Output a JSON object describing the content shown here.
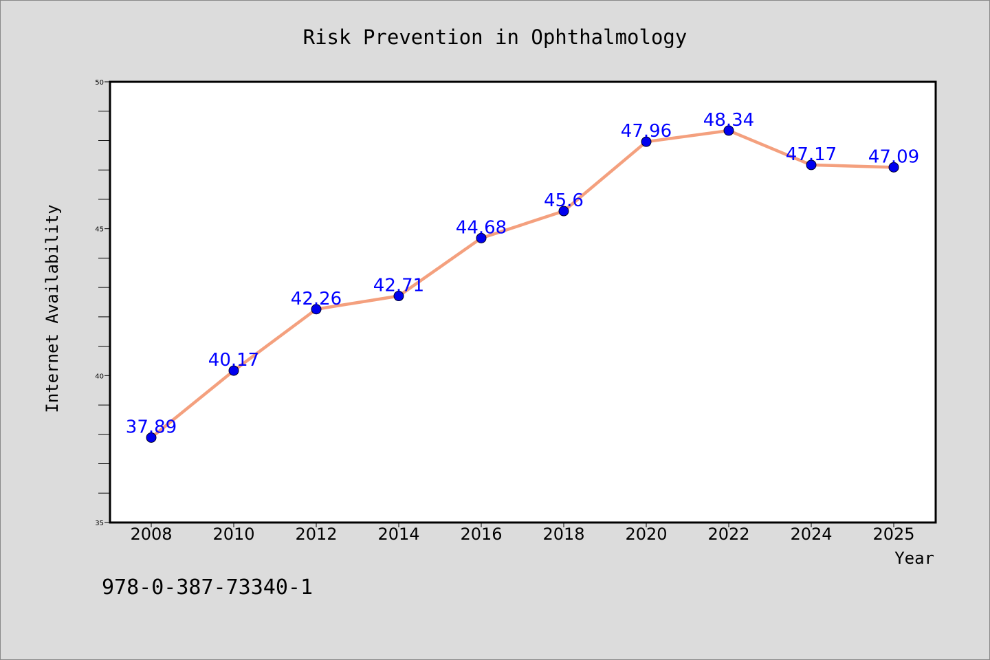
{
  "chart_data": {
    "type": "line",
    "title": "Risk Prevention in Ophthalmology",
    "xlabel": "Year",
    "ylabel": "Internet Availability",
    "x": [
      "2008",
      "2010",
      "2012",
      "2014",
      "2016",
      "2018",
      "2020",
      "2022",
      "2024",
      "2025"
    ],
    "series": [
      {
        "values": [
          37.89,
          40.17,
          42.26,
          42.71,
          44.68,
          45.6,
          47.96,
          48.34,
          47.17,
          47.09
        ],
        "labels": [
          "37.89",
          "40.17",
          "42.26",
          "42.71",
          "44.68",
          "45.6",
          "47.96",
          "48.34",
          "47.17",
          "47.09"
        ],
        "line_color": "#f4a07e",
        "marker_color": "#0000ee"
      }
    ],
    "ylim": [
      35,
      50
    ],
    "yticks": [
      "35",
      "40",
      "45",
      "50"
    ],
    "label_color": "#0000ff",
    "grid": false
  },
  "footer": {
    "isbn": "978-0-387-73340-1"
  }
}
